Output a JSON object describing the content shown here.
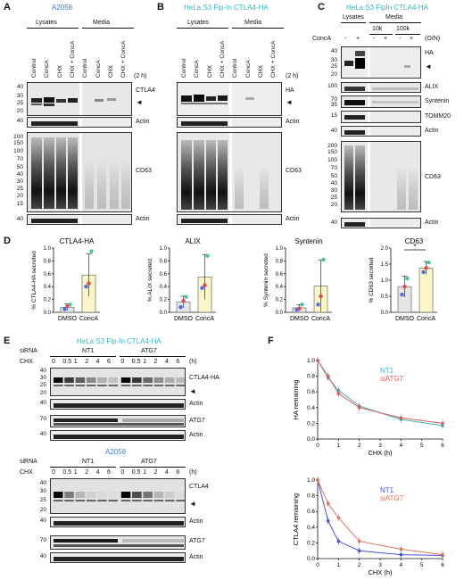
{
  "panels": {
    "A": {
      "letter": "A",
      "title": "A2058",
      "groups": [
        "Lysates",
        "Media"
      ],
      "lanes": [
        "Control",
        "ConcA",
        "CHX",
        "CHX + ConcA",
        "Control",
        "ConcA",
        "CHX",
        "CHX + ConcA"
      ],
      "time": "(2 h)",
      "labels": [
        "CTLA4",
        "Actin",
        "CD63",
        "Actin"
      ],
      "mw_top": [
        "40",
        "30",
        "25",
        "20",
        "40"
      ],
      "mw_bottom": [
        "200",
        "150",
        "100",
        "70",
        "50",
        "40",
        "30",
        "25",
        "20",
        "15",
        "40"
      ]
    },
    "B": {
      "letter": "B",
      "title": "HeLa S3 Flp-In CTLA4-HA",
      "groups": [
        "Lysates",
        "Media"
      ],
      "lanes": [
        "Control",
        "ConcA",
        "CHX",
        "CHX + ConcA",
        "Control",
        "ConcA",
        "CHX",
        "CHX + ConcA"
      ],
      "time": "(2 h)",
      "labels": [
        "HA",
        "Actin",
        "CD63",
        "Actin"
      ]
    },
    "C": {
      "letter": "C",
      "title": "HeLa S3 FlpIn CTLA4-HA",
      "groups": [
        "Lysates",
        "Media",
        "10k",
        "100k"
      ],
      "treat_label": "ConcA",
      "treat_signs": [
        "-",
        "+",
        "-",
        "+",
        "-",
        "+"
      ],
      "time": "(O/N)",
      "labels": [
        "HA",
        "ALIX",
        "Syntenin",
        "TOMM20",
        "Actin",
        "CD63",
        "Actin"
      ],
      "mw_top": [
        "40",
        "30",
        "25",
        "20",
        "100",
        "70",
        "35",
        "15",
        "40"
      ],
      "mw_bottom": [
        "200",
        "150",
        "100",
        "70",
        "50",
        "40",
        "30",
        "25",
        "20",
        "40"
      ]
    },
    "E": {
      "letter": "E",
      "top_title": "HeLa S3 Flp-In CTLA4-HA",
      "bottom_title": "A2058",
      "sirna": "siRNA",
      "chx": "CHX",
      "unit": "(h)",
      "groups": [
        "NT1",
        "ATG7"
      ],
      "times": [
        "0",
        "0.5",
        "1",
        "2",
        "4",
        "6",
        "0",
        "0.5",
        "1",
        "2",
        "4",
        "6"
      ],
      "top_labels": [
        "CTLA4-HA",
        "Actin",
        "ATG7",
        "Actin"
      ],
      "bottom_labels": [
        "CTLA4",
        "Actin",
        "ATG7",
        "Actin"
      ],
      "mw_top": [
        "40",
        "30",
        "25",
        "20",
        "40",
        "70",
        "40"
      ],
      "mw_bottom": [
        "40",
        "30",
        "25",
        "20",
        "40",
        "70",
        "40"
      ]
    }
  },
  "panel_D_letter": "D",
  "panel_F_letter": "F",
  "chart_data": [
    {
      "type": "bar",
      "title": "CTLA4-HA",
      "categories": [
        "DMSO",
        "ConcA"
      ],
      "values": [
        0.08,
        0.58
      ],
      "errors": [
        0.05,
        0.33
      ],
      "points": [
        [
          0.05,
          0.1,
          0.12
        ],
        [
          0.4,
          0.45,
          0.95
        ]
      ],
      "ylabel": "% CTLA4-HA secreted",
      "ylim": [
        0,
        1.0
      ],
      "yticks": [
        "0.0",
        "0.2",
        "0.4",
        "0.6",
        "0.8",
        "1.0"
      ],
      "colors": [
        "#e6e6e6",
        "#fbf5c8"
      ]
    },
    {
      "type": "bar",
      "title": "ALIX",
      "categories": [
        "DMSO",
        "ConcA"
      ],
      "values": [
        0.16,
        0.55
      ],
      "errors": [
        0.09,
        0.35
      ],
      "points": [
        [
          0.08,
          0.18,
          0.24
        ],
        [
          0.38,
          0.42,
          0.88
        ]
      ],
      "ylabel": "% ALIX secreted",
      "ylim": [
        0,
        1.0
      ],
      "yticks": [
        "0.0",
        "0.2",
        "0.4",
        "0.6",
        "0.8",
        "1.0"
      ],
      "colors": [
        "#e6e6e6",
        "#fbf5c8"
      ]
    },
    {
      "type": "bar",
      "title": "Syntenin",
      "categories": [
        "DMSO",
        "ConcA"
      ],
      "values": [
        0.07,
        0.41
      ],
      "errors": [
        0.05,
        0.4
      ],
      "points": [
        [
          0.04,
          0.06,
          0.12
        ],
        [
          0.12,
          0.25,
          0.82
        ]
      ],
      "ylabel": "% Syntenin secreted",
      "ylim": [
        0,
        1.0
      ],
      "yticks": [
        "0.0",
        "0.2",
        "0.4",
        "0.6",
        "0.8",
        "1.0"
      ],
      "colors": [
        "#e6e6e6",
        "#fbf5c8"
      ]
    },
    {
      "type": "bar",
      "title": "CD63",
      "categories": [
        "DMSO",
        "ConcA"
      ],
      "values": [
        0.8,
        1.38
      ],
      "errors": [
        0.33,
        0.2
      ],
      "points": [
        [
          0.55,
          0.8,
          1.05
        ],
        [
          1.25,
          1.38,
          1.55
        ]
      ],
      "ylabel": "% CD63 secreted",
      "ylim": [
        0,
        2.0
      ],
      "yticks": [
        "0.0",
        "0.5",
        "1.0",
        "1.5",
        "2.0"
      ],
      "significance": "*",
      "colors": [
        "#e6e6e6",
        "#fbf5c8"
      ]
    },
    {
      "type": "line",
      "title": "",
      "xlabel": "CHX (h)",
      "ylabel": "HA remaining",
      "xlim": [
        0,
        6
      ],
      "ylim": [
        0,
        1.0
      ],
      "xticks": [
        "0",
        "1",
        "2",
        "3",
        "4",
        "5",
        "6"
      ],
      "yticks": [
        "0.0",
        "0.2",
        "0.4",
        "0.6",
        "0.8",
        "1.0"
      ],
      "x": [
        0,
        0.5,
        1,
        2,
        4,
        6
      ],
      "series": [
        {
          "name": "NT1",
          "color": "#3ab7b0",
          "values": [
            1.0,
            0.78,
            0.62,
            0.42,
            0.25,
            0.17
          ]
        },
        {
          "name": "siATG7",
          "color": "#e05b5b",
          "values": [
            1.0,
            0.8,
            0.58,
            0.4,
            0.27,
            0.2
          ]
        }
      ]
    },
    {
      "type": "line",
      "title": "",
      "xlabel": "CHX (h)",
      "ylabel": "CTLA4 remaining",
      "xlim": [
        0,
        6
      ],
      "ylim": [
        0,
        1.0
      ],
      "xticks": [
        "0",
        "1",
        "2",
        "3",
        "4",
        "5",
        "6"
      ],
      "yticks": [
        "0.0",
        "0.2",
        "0.4",
        "0.6",
        "0.8",
        "1.0"
      ],
      "x": [
        0,
        0.5,
        1,
        2,
        4,
        6
      ],
      "series": [
        {
          "name": "NT1",
          "color": "#4a52d6",
          "values": [
            1.0,
            0.48,
            0.22,
            0.1,
            0.05,
            0.04
          ]
        },
        {
          "name": "siATG7",
          "color": "#e0735b",
          "values": [
            1.0,
            0.7,
            0.52,
            0.22,
            0.12,
            0.05
          ]
        }
      ]
    }
  ]
}
